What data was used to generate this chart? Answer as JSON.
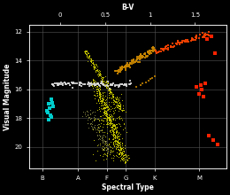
{
  "title": "B-V",
  "xlabel": "Spectral Type",
  "ylabel": "Visual Magnitude",
  "bg_color": "#000000",
  "grid_color": "#555555",
  "ylim": [
    21.5,
    11.5
  ],
  "xlim": [
    -0.35,
    1.85
  ],
  "spectral_types": [
    "B",
    "A",
    "F",
    "G",
    "K",
    "M"
  ],
  "spectral_x": [
    -0.2,
    0.2,
    0.52,
    0.73,
    1.05,
    1.55
  ],
  "bv_ticks": [
    0.0,
    0.5,
    1.0,
    1.5
  ],
  "ymajor_ticks": [
    12,
    14,
    16,
    18,
    20
  ],
  "ms_color": "#CCCC00",
  "giant_color": "#CC8800",
  "red_giant_color": "#FF4400",
  "horiz_color": "#DDDDDD",
  "blue_color": "#00CCCC",
  "red_outlier_color": "#FF2200",
  "ms_size": 2,
  "giant_size": 3,
  "rg_size": 4,
  "hb_size": 3,
  "bs_size": 5,
  "ro_size": 5
}
